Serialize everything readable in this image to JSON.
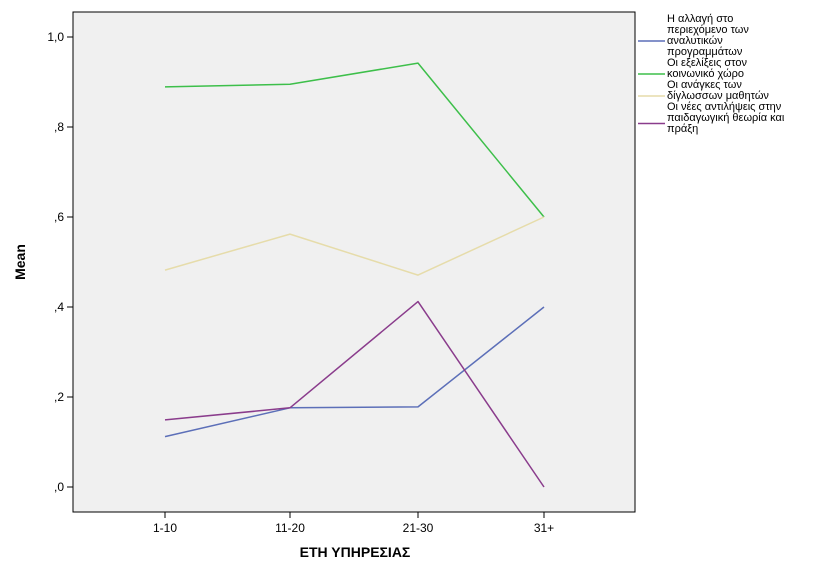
{
  "chart_data": {
    "type": "line",
    "title": "",
    "xlabel": "ΕΤΗ ΥΠΗΡΕΣΙΑΣ",
    "ylabel": "Mean",
    "categories": [
      "1-10",
      "11-20",
      "21-30",
      "31+"
    ],
    "ylim": [
      0,
      1.05
    ],
    "yticks": [
      0,
      0.2,
      0.4,
      0.6,
      0.8,
      1.0
    ],
    "ytick_labels": [
      ",0",
      ",2",
      ",4",
      ",6",
      ",8",
      "1,0"
    ],
    "grid": false,
    "legend_position": "right",
    "plot_background": "#f0f0f0",
    "series": [
      {
        "name": "Η αλλαγή στο περιεχόμενο των αναλυτικών προγραμμάτων",
        "legend_lines": [
          "Η αλλαγή στο",
          "περιεχόμενο των",
          "αναλυτικών",
          "προγραμμάτων"
        ],
        "color": "#5c6fb8",
        "values": [
          0.112,
          0.176,
          0.178,
          0.4
        ]
      },
      {
        "name": "Οι εξελίξεις στον κοινωνικό χώρο",
        "legend_lines": [
          "Οι εξελίξεις στον",
          "κοινωνικό χώρο"
        ],
        "color": "#3dbf4a",
        "values": [
          0.889,
          0.895,
          0.942,
          0.6
        ]
      },
      {
        "name": "Οι ανάγκες των δίγλωσσων μαθητών",
        "legend_lines": [
          "Οι ανάγκες των",
          "δίγλωσσων μαθητών"
        ],
        "color": "#e6dcaa",
        "values": [
          0.482,
          0.562,
          0.471,
          0.6
        ]
      },
      {
        "name": "Οι νέες αντιλήψεις στην παιδαγωγική θεωρία και πράξη",
        "legend_lines": [
          "Οι νέες αντιλήψεις στην",
          "παιδαγωγική θεωρία και",
          "πράξη"
        ],
        "color": "#8a3c8c",
        "values": [
          0.149,
          0.176,
          0.412,
          0.0
        ]
      }
    ]
  }
}
